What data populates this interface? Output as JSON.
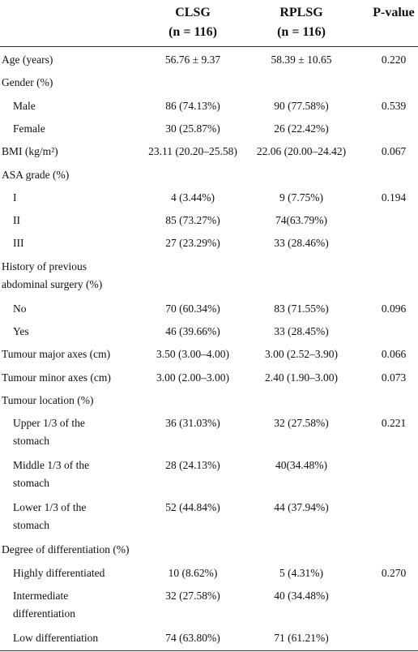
{
  "table": {
    "header": {
      "columns": [
        [
          "CLSG",
          "(n = 116)"
        ],
        [
          "RPLSG",
          "(n = 116)"
        ],
        [
          "P-value"
        ]
      ]
    },
    "rows": [
      {
        "label": [
          "Age (years)"
        ],
        "clsg": "56.76 ± 9.37",
        "rplsg": "58.39 ± 10.65",
        "p": "0.220"
      },
      {
        "label": [
          "Gender (%)"
        ]
      },
      {
        "label": [
          "Male"
        ],
        "indent": true,
        "clsg": "86 (74.13%)",
        "rplsg": "90 (77.58%)",
        "p": "0.539"
      },
      {
        "label": [
          "Female"
        ],
        "indent": true,
        "clsg": "30 (25.87%)",
        "rplsg": "26 (22.42%)"
      },
      {
        "label": [
          "BMI (kg/m²)"
        ],
        "clsg": "23.11 (20.20–25.58)",
        "rplsg": "22.06 (20.00–24.42)",
        "p": "0.067"
      },
      {
        "label": [
          "ASA grade (%)"
        ]
      },
      {
        "label": [
          "I"
        ],
        "indent": true,
        "clsg": "4 (3.44%)",
        "rplsg": "9 (7.75%)",
        "p": "0.194"
      },
      {
        "label": [
          "II"
        ],
        "indent": true,
        "clsg": "85 (73.27%)",
        "rplsg": "74(63.79%)"
      },
      {
        "label": [
          "III"
        ],
        "indent": true,
        "clsg": "27 (23.29%)",
        "rplsg": "33 (28.46%)"
      },
      {
        "label": [
          "History of previous",
          "abdominal surgery  (%)"
        ]
      },
      {
        "label": [
          "No"
        ],
        "indent": true,
        "clsg": "70 (60.34%)",
        "rplsg": "83 (71.55%)",
        "p": "0.096"
      },
      {
        "label": [
          "Yes"
        ],
        "indent": true,
        "clsg": "46 (39.66%)",
        "rplsg": "33 (28.45%)"
      },
      {
        "label": [
          "Tumour major axes (cm)"
        ],
        "clsg": "3.50 (3.00–4.00)",
        "rplsg": "3.00 (2.52–3.90)",
        "p": "0.066"
      },
      {
        "label": [
          "Tumour minor axes (cm)"
        ],
        "clsg": "3.00 (2.00–3.00)",
        "rplsg": "2.40 (1.90–3.00)",
        "p": "0.073"
      },
      {
        "label": [
          "Tumour location (%)"
        ]
      },
      {
        "label": [
          "Upper 1/3 of the",
          "stomach"
        ],
        "indent": true,
        "clsg": "36 (31.03%)",
        "rplsg": "32 (27.58%)",
        "p": "0.221"
      },
      {
        "label": [
          "Middle 1/3 of the",
          "stomach"
        ],
        "indent": true,
        "clsg": "28 (24.13%)",
        "rplsg": "40(34.48%)"
      },
      {
        "label": [
          "Lower 1/3 of the",
          "stomach"
        ],
        "indent": true,
        "clsg": "52 (44.84%)",
        "rplsg": "44 (37.94%)"
      },
      {
        "label": [
          "Degree of differentiation (%)"
        ]
      },
      {
        "label": [
          "Highly differentiated"
        ],
        "indent": true,
        "clsg": "10 (8.62%)",
        "rplsg": "5 (4.31%)",
        "p": "0.270"
      },
      {
        "label": [
          "Intermediate",
          "differentiation"
        ],
        "indent": true,
        "clsg": "32 (27.58%)",
        "rplsg": "40 (34.48%)"
      },
      {
        "label": [
          "Low differentiation"
        ],
        "indent": true,
        "clsg": "74 (63.80%)",
        "rplsg": "71 (61.21%)"
      }
    ]
  }
}
